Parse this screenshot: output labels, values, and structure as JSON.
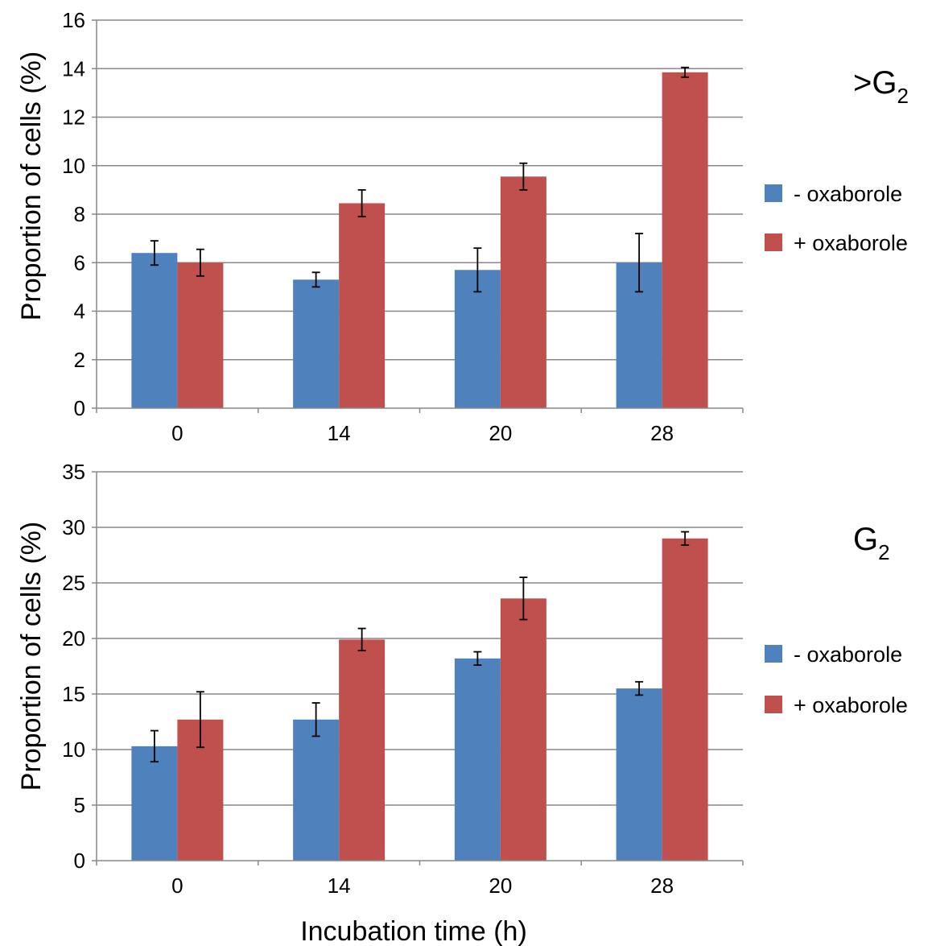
{
  "figure": {
    "xlabel": "Incubation   time (h)"
  },
  "chart_data": [
    {
      "type": "bar",
      "panel_label": ">G",
      "panel_label_sub": "2",
      "ylabel": "Proportion   of cells (%)",
      "ylim": [
        0,
        16
      ],
      "yticks": [
        0,
        2,
        4,
        6,
        8,
        10,
        12,
        14,
        16
      ],
      "grid": true,
      "legend_position": "right",
      "categories": [
        "0",
        "14",
        "20",
        "28"
      ],
      "series": [
        {
          "name": "- oxaborole",
          "color": "#4f81bd",
          "values": [
            6.4,
            5.3,
            5.7,
            6.0
          ],
          "errors": [
            0.5,
            0.3,
            0.9,
            1.2
          ]
        },
        {
          "name": "+ oxaborole",
          "color": "#c0504d",
          "values": [
            6.0,
            8.45,
            9.55,
            13.85
          ],
          "errors": [
            0.55,
            0.55,
            0.55,
            0.2
          ]
        }
      ]
    },
    {
      "type": "bar",
      "panel_label": "G",
      "panel_label_sub": "2",
      "ylabel": "Proportion   of cells (%)",
      "ylim": [
        0,
        35
      ],
      "yticks": [
        0,
        5,
        10,
        15,
        20,
        25,
        30,
        35
      ],
      "grid": true,
      "legend_position": "right",
      "categories": [
        "0",
        "14",
        "20",
        "28"
      ],
      "series": [
        {
          "name": "- oxaborole",
          "color": "#4f81bd",
          "values": [
            10.3,
            12.7,
            18.2,
            15.5
          ],
          "errors": [
            1.4,
            1.5,
            0.6,
            0.6
          ]
        },
        {
          "name": "+ oxaborole",
          "color": "#c0504d",
          "values": [
            12.7,
            19.9,
            23.6,
            29.0
          ],
          "errors": [
            2.5,
            1.0,
            1.9,
            0.6
          ]
        }
      ]
    }
  ]
}
